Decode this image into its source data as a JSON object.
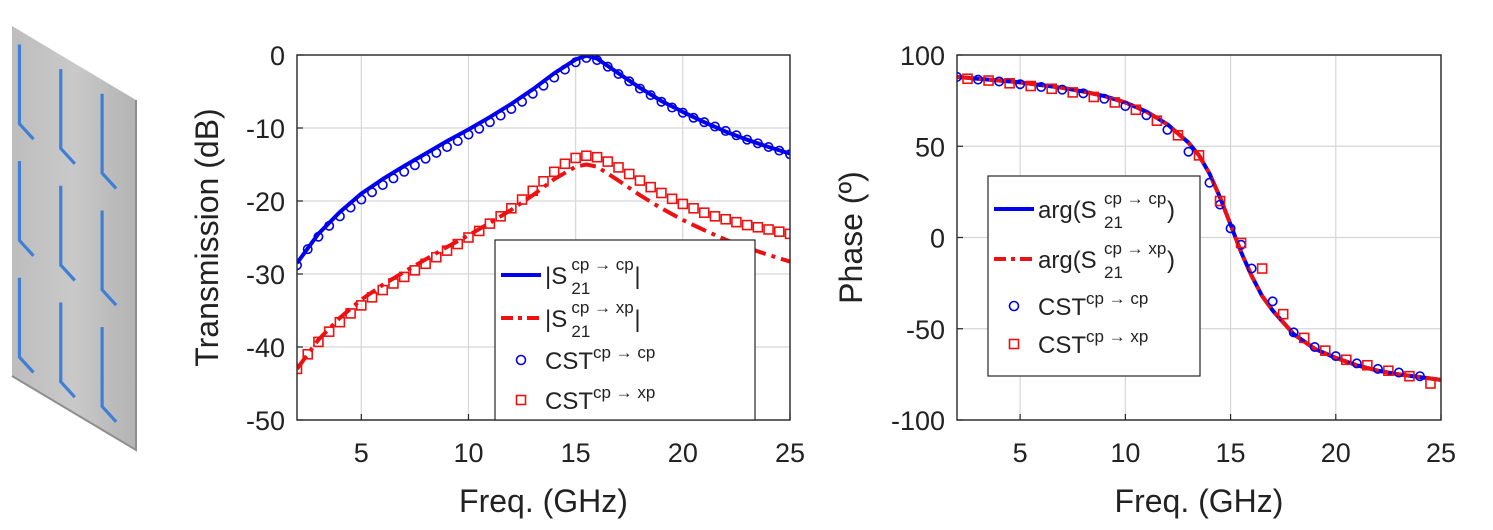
{
  "colors": {
    "cp": "#0000ee",
    "xp": "#ee1111",
    "grid": "#d6d6d6",
    "axis": "#262626",
    "sheet": "#c9c9c9",
    "strip": "#3f7fd6"
  },
  "illustration": {
    "name": "metasurface-sheet",
    "rows": 3,
    "cols": 3
  },
  "chart_data": [
    {
      "type": "line",
      "xlabel": "Freq. (GHz)",
      "ylabel": "Transmission (dB)",
      "xlim": [
        2,
        25
      ],
      "ylim": [
        -50,
        0
      ],
      "xticks": [
        5,
        10,
        15,
        20,
        25
      ],
      "yticks": [
        0,
        -10,
        -20,
        -30,
        -40,
        -50
      ],
      "grid": true,
      "legend_position": "bottom-right",
      "series": [
        {
          "name": "|S21 cp→cp|",
          "legend": {
            "pre": "|S",
            "sub": "21",
            "sup": "cp → cp",
            "post": "|"
          },
          "color_key": "cp",
          "style": "solid",
          "x": [
            2,
            3,
            4,
            5,
            6,
            7,
            8,
            9,
            10,
            11,
            12,
            13,
            14,
            15,
            15.5,
            16,
            17,
            18,
            19,
            20,
            21,
            22,
            23,
            24,
            25
          ],
          "y": [
            -28.5,
            -24.5,
            -21.5,
            -19,
            -17,
            -15.2,
            -13.5,
            -11.8,
            -10.2,
            -8.5,
            -6.7,
            -4.7,
            -2.5,
            -0.6,
            -0.1,
            -0.5,
            -2.5,
            -4.5,
            -6.3,
            -7.8,
            -9.2,
            -10.5,
            -11.6,
            -12.6,
            -13.5
          ]
        },
        {
          "name": "|S21 cp→xp|",
          "legend": {
            "pre": "|S",
            "sub": "21",
            "sup": "cp → xp",
            "post": "|"
          },
          "color_key": "xp",
          "style": "dashdot",
          "x": [
            2,
            3,
            4,
            5,
            6,
            7,
            8,
            9,
            10,
            11,
            12,
            13,
            14,
            15,
            15.5,
            16,
            17,
            18,
            19,
            20,
            21,
            22,
            23,
            24,
            25
          ],
          "y": [
            -43,
            -39,
            -36,
            -33.5,
            -31.5,
            -29.7,
            -28,
            -26.3,
            -24.7,
            -23,
            -21.2,
            -19.2,
            -17,
            -15.3,
            -15,
            -15.3,
            -17.2,
            -19.2,
            -21,
            -22.6,
            -24,
            -25.3,
            -26.4,
            -27.4,
            -28.3
          ]
        },
        {
          "name": "CST cp→cp",
          "legend": {
            "pre": "CST",
            "sub": "",
            "sup": "cp → cp",
            "post": ""
          },
          "color_key": "cp",
          "style": "circle",
          "x": [
            2,
            2.5,
            3,
            3.5,
            4,
            4.5,
            5,
            5.5,
            6,
            6.5,
            7,
            7.5,
            8,
            8.5,
            9,
            9.5,
            10,
            10.5,
            11,
            11.5,
            12,
            12.5,
            13,
            13.5,
            14,
            14.5,
            15,
            15.5,
            16,
            16.5,
            17,
            17.5,
            18,
            18.5,
            19,
            19.5,
            20,
            20.5,
            21,
            21.5,
            22,
            22.5,
            23,
            23.5,
            24,
            24.5,
            25
          ],
          "y": [
            -28.8,
            -26.6,
            -24.9,
            -23.4,
            -22.1,
            -20.9,
            -19.8,
            -18.8,
            -17.8,
            -16.9,
            -16,
            -15.1,
            -14.2,
            -13.4,
            -12.6,
            -11.8,
            -10.9,
            -10.1,
            -9.2,
            -8.3,
            -7.4,
            -6.4,
            -5.3,
            -4.2,
            -3.1,
            -2,
            -1,
            -0.4,
            -0.7,
            -1.6,
            -2.6,
            -3.6,
            -4.6,
            -5.5,
            -6.4,
            -7.2,
            -7.9,
            -8.6,
            -9.2,
            -9.8,
            -10.4,
            -11,
            -11.6,
            -12.1,
            -12.6,
            -13.1,
            -13.6
          ]
        },
        {
          "name": "CST cp→xp",
          "legend": {
            "pre": "CST",
            "sub": "",
            "sup": "cp → xp",
            "post": ""
          },
          "color_key": "xp",
          "style": "square",
          "x": [
            2,
            2.5,
            3,
            3.5,
            4,
            4.5,
            5,
            5.5,
            6,
            6.5,
            7,
            7.5,
            8,
            8.5,
            9,
            9.5,
            10,
            10.5,
            11,
            11.5,
            12,
            12.5,
            13,
            13.5,
            14,
            14.5,
            15,
            15.5,
            16,
            16.5,
            17,
            17.5,
            18,
            18.5,
            19,
            19.5,
            20,
            20.5,
            21,
            21.5,
            22,
            22.5,
            23,
            23.5,
            24,
            24.5,
            25
          ],
          "y": [
            -43,
            -41,
            -39.3,
            -37.9,
            -36.6,
            -35.4,
            -34.3,
            -33.2,
            -32.2,
            -31.3,
            -30.4,
            -29.5,
            -28.6,
            -27.7,
            -26.8,
            -25.9,
            -25,
            -24.1,
            -23.1,
            -22.1,
            -21,
            -19.8,
            -18.6,
            -17.3,
            -16,
            -14.9,
            -14.1,
            -13.8,
            -14,
            -14.6,
            -15.4,
            -16.3,
            -17.2,
            -18.1,
            -18.9,
            -19.7,
            -20.4,
            -21,
            -21.6,
            -22.1,
            -22.5,
            -22.9,
            -23.3,
            -23.6,
            -23.9,
            -24.2,
            -24.5
          ]
        }
      ]
    },
    {
      "type": "line",
      "xlabel": "Freq. (GHz)",
      "ylabel": "Phase (º)",
      "xlim": [
        2,
        25
      ],
      "ylim": [
        -100,
        100
      ],
      "xticks": [
        5,
        10,
        15,
        20,
        25
      ],
      "yticks": [
        100,
        50,
        0,
        -50,
        -100
      ],
      "grid": true,
      "legend_position": "center-left",
      "series": [
        {
          "name": "arg(S21 cp→cp)",
          "legend": {
            "pre": "arg(S",
            "sub": "21",
            "sup": "cp → cp",
            "post": ")"
          },
          "color_key": "cp",
          "style": "solid",
          "x": [
            2,
            3,
            4,
            5,
            6,
            7,
            8,
            9,
            10,
            11,
            12,
            13,
            13.5,
            14,
            14.5,
            15,
            15.5,
            16,
            16.5,
            17,
            18,
            19,
            20,
            21,
            22,
            23,
            24,
            25
          ],
          "y": [
            88,
            87,
            86,
            85,
            83.5,
            82,
            80,
            77.5,
            74,
            69,
            62,
            52,
            45,
            35,
            22,
            7,
            -8,
            -21,
            -32,
            -40,
            -53,
            -61,
            -66,
            -70,
            -73,
            -75,
            -76.5,
            -78
          ]
        },
        {
          "name": "arg(S21 cp→xp)",
          "legend": {
            "pre": "arg(S",
            "sub": "21",
            "sup": "cp → xp",
            "post": ")"
          },
          "color_key": "xp",
          "style": "dashdot",
          "x": [
            2,
            3,
            4,
            5,
            6,
            7,
            8,
            9,
            10,
            11,
            12,
            13,
            13.5,
            14,
            14.5,
            15,
            15.5,
            16,
            16.5,
            17,
            18,
            19,
            20,
            21,
            22,
            23,
            24,
            25
          ],
          "y": [
            88,
            87,
            86,
            85,
            83.5,
            82,
            80,
            77.5,
            74,
            69,
            62,
            52,
            45,
            35,
            22,
            7,
            -8,
            -21,
            -32,
            -40,
            -53,
            -61,
            -66,
            -70,
            -73,
            -75,
            -76.5,
            -78
          ]
        },
        {
          "name": "CST cp→cp",
          "legend": {
            "pre": "CST",
            "sub": "",
            "sup": "cp → cp",
            "post": ""
          },
          "color_key": "cp",
          "style": "circle",
          "x": [
            2,
            3,
            4,
            5,
            6,
            7,
            8,
            9,
            10,
            11,
            12,
            13,
            14,
            14.5,
            15,
            15.5,
            16,
            17,
            18,
            19,
            20,
            21,
            22,
            23,
            24
          ],
          "y": [
            88,
            86.5,
            85.5,
            84,
            82.5,
            81,
            79,
            76,
            72,
            67,
            59,
            47,
            30,
            18,
            5,
            -4,
            -17,
            -35,
            -52,
            -60,
            -65,
            -69,
            -72,
            -74,
            -76
          ]
        },
        {
          "name": "CST cp→xp",
          "legend": {
            "pre": "CST",
            "sub": "",
            "sup": "cp → xp",
            "post": ""
          },
          "color_key": "xp",
          "style": "square",
          "x": [
            2.5,
            3.5,
            4.5,
            5.5,
            6.5,
            7.5,
            8.5,
            9.5,
            10.5,
            11.5,
            12.5,
            13.5,
            14.5,
            15.5,
            16.5,
            17.5,
            18.5,
            19.5,
            20.5,
            21.5,
            22.5,
            23.5,
            24.5
          ],
          "y": [
            87,
            86,
            84.5,
            83,
            81.5,
            79.5,
            77,
            74,
            70,
            64,
            56,
            45,
            20,
            -3,
            -17,
            -42,
            -55,
            -62,
            -67,
            -70,
            -73,
            -76,
            -80
          ]
        }
      ]
    }
  ]
}
